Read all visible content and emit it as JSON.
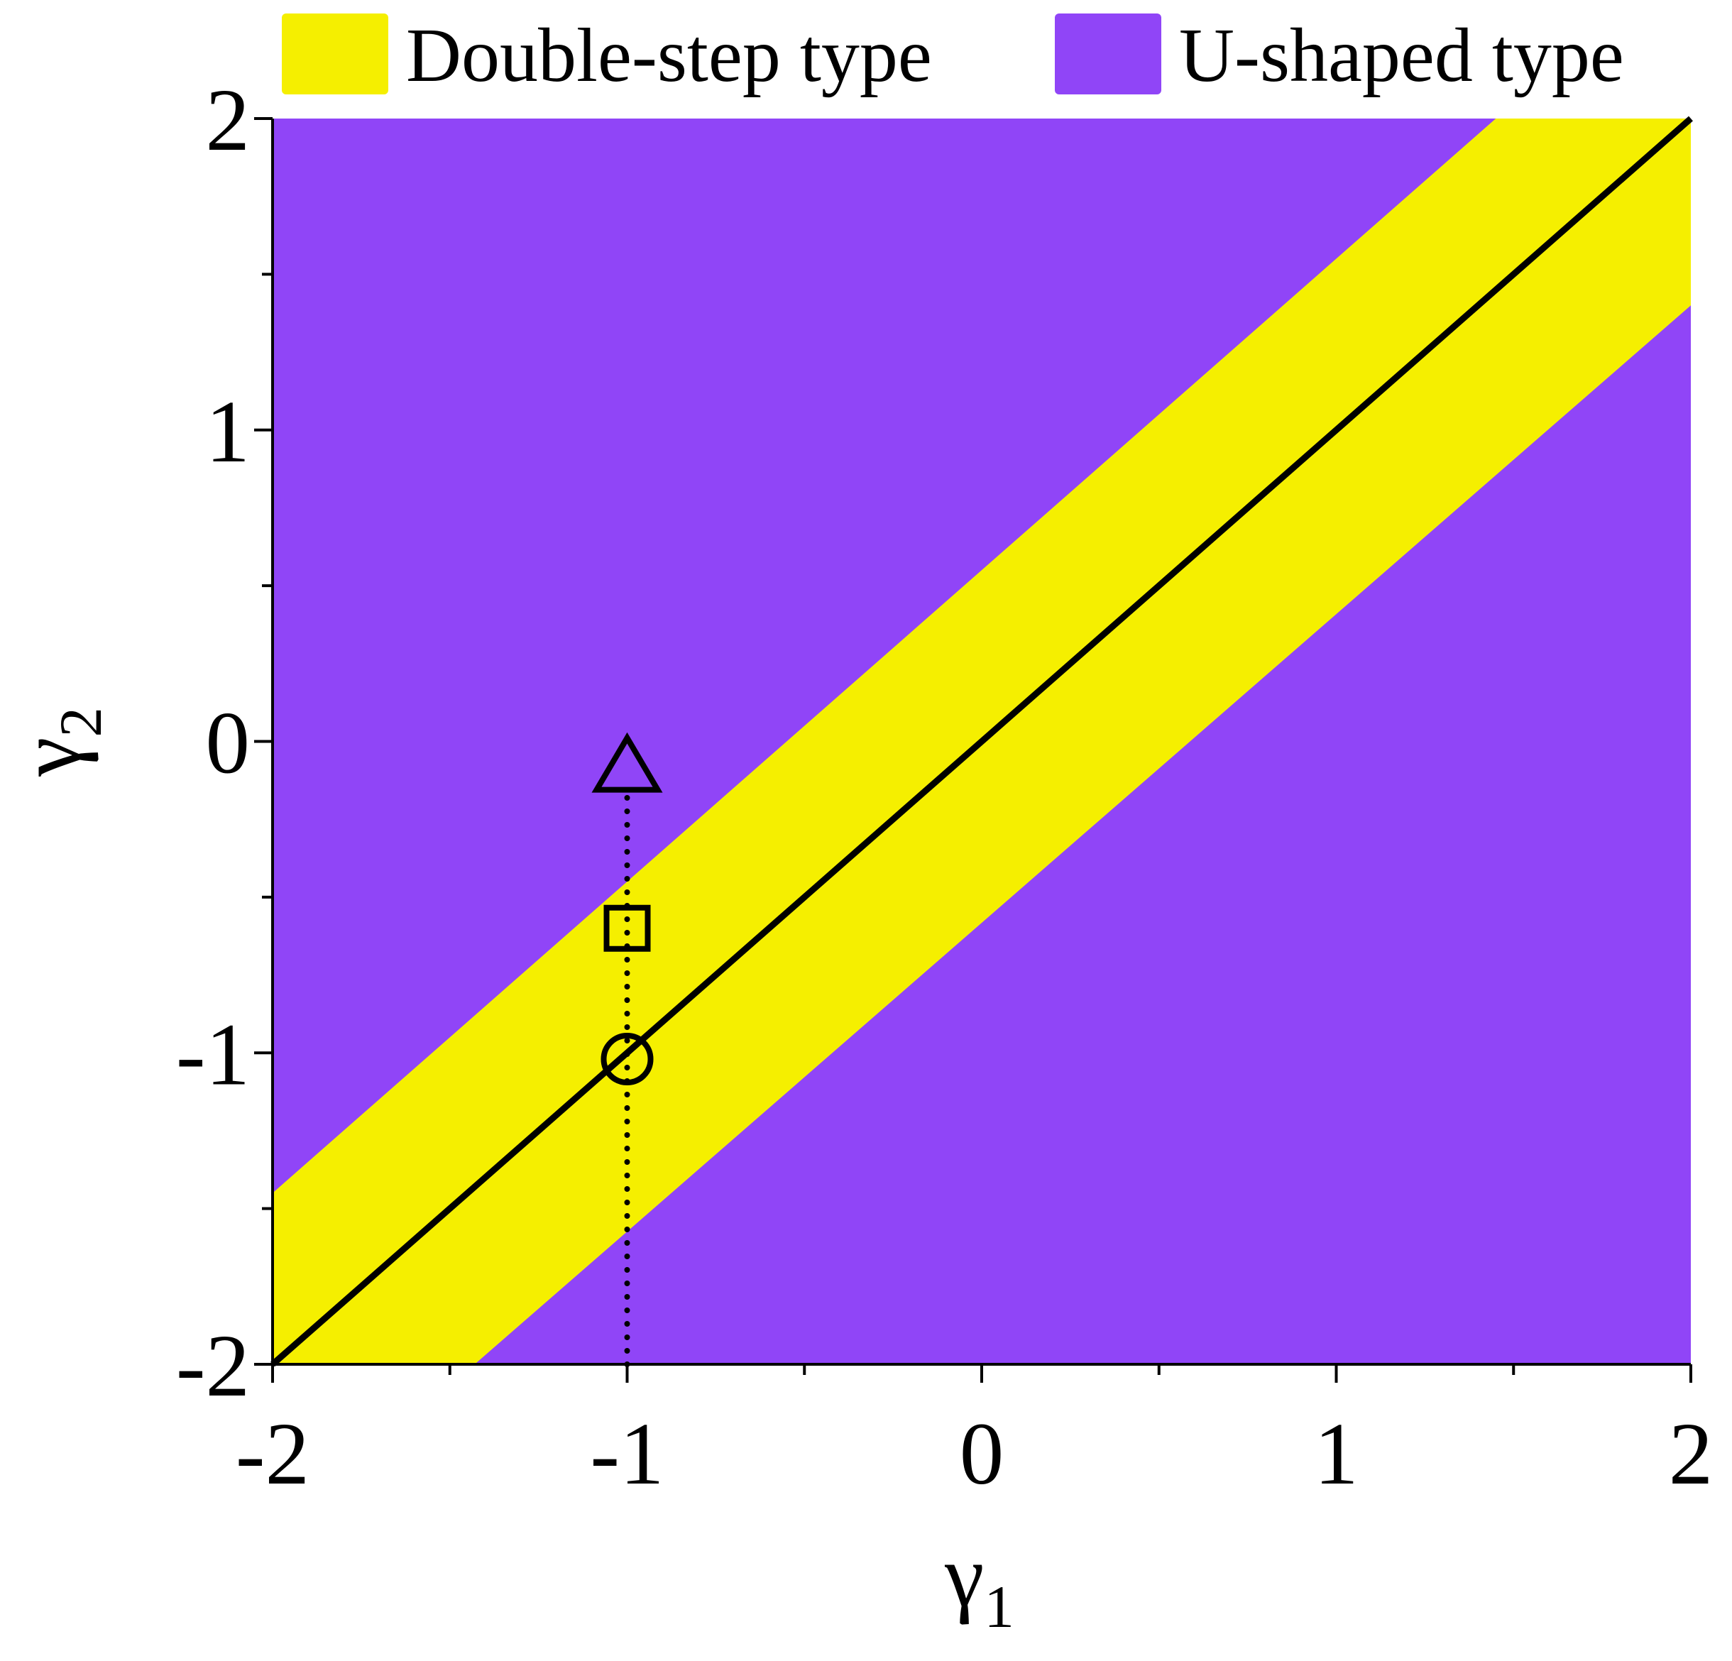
{
  "chart_data": {
    "type": "region",
    "series": [
      {
        "name": "Double-step type",
        "color": "#f5ef00",
        "x": [
          -2,
          -2,
          1.45,
          2,
          2,
          -1.43
        ],
        "y": [
          -2,
          -1.45,
          2,
          2,
          1.4,
          -2
        ]
      },
      {
        "name": "U-shaped type",
        "color": "#9045f7"
      }
    ],
    "line": {
      "x": [
        -2,
        2
      ],
      "y": [
        -2,
        2
      ],
      "color": "#000000"
    },
    "dotted_line": {
      "x": [
        -1,
        -1
      ],
      "y": [
        -2,
        -0.15
      ],
      "color": "#000000"
    },
    "points": [
      {
        "shape": "triangle",
        "x": -1,
        "y": -0.08
      },
      {
        "shape": "square",
        "x": -1,
        "y": -0.6
      },
      {
        "shape": "circle",
        "x": -1,
        "y": -1.02
      }
    ],
    "x_label": "γ",
    "x_label_sub": "1",
    "y_label": "γ",
    "y_label_sub": "2",
    "xlim": [
      -2,
      2
    ],
    "ylim": [
      -2,
      2
    ],
    "xticks": [
      -2,
      -1,
      0,
      1,
      2
    ],
    "yticks": [
      -2,
      -1,
      0,
      1,
      2
    ],
    "xminor": [
      -1.5,
      -0.5,
      0.5,
      1.5
    ],
    "yminor": [
      -1.5,
      -0.5,
      0.5,
      1.5
    ]
  }
}
